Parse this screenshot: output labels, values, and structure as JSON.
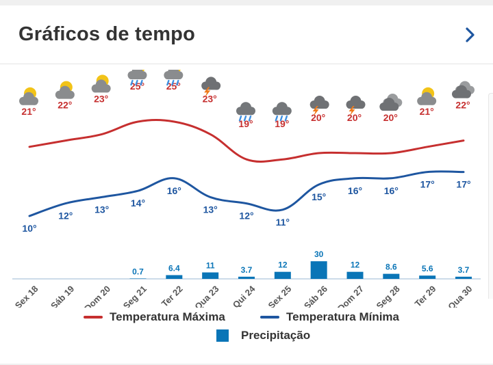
{
  "header": {
    "title": "Gráficos de tempo"
  },
  "colors": {
    "max": "#c62f2f",
    "min": "#1e56a0",
    "precip": "#0a75b7",
    "axis": "#555555"
  },
  "chart_data": {
    "type": "line",
    "categories": [
      "Sex 18",
      "Sáb 19",
      "Dom 20",
      "Seg 21",
      "Ter 22",
      "Qua 23",
      "Qui 24",
      "Sex 25",
      "Sáb 26",
      "Dom 27",
      "Seg 28",
      "Ter 29",
      "Qua 30"
    ],
    "icons": [
      "partly-cloudy-icon",
      "partly-cloudy-icon",
      "partly-cloudy-icon",
      "sun-cloud-rain-icon",
      "sun-cloud-rain-icon",
      "thunderstorm-icon",
      "cloud-rain-icon",
      "cloud-rain-icon",
      "thunderstorm-icon",
      "thunderstorm-icon",
      "cloudy-icon",
      "partly-cloudy-icon",
      "cloudy-icon"
    ],
    "series": [
      {
        "name": "Temperatura Máxima",
        "values": [
          21,
          22,
          23,
          25,
          25,
          23,
          19,
          19,
          20,
          20,
          20,
          21,
          22
        ],
        "labels": [
          "21°",
          "22°",
          "23°",
          "25°",
          "25°",
          "23°",
          "19°",
          "19°",
          "20°",
          "20°",
          "20°",
          "21°",
          "22°"
        ]
      },
      {
        "name": "Temperatura Mínima",
        "values": [
          10,
          12,
          13,
          14,
          16,
          13,
          12,
          11,
          15,
          16,
          16,
          17,
          17
        ],
        "labels": [
          "10°",
          "12°",
          "13°",
          "14°",
          "16°",
          "13°",
          "12°",
          "11°",
          "15°",
          "16°",
          "16°",
          "17°",
          "17°"
        ]
      },
      {
        "name": "Precipitação",
        "values": [
          0,
          0,
          0,
          0.7,
          6.4,
          11,
          3.7,
          12,
          30,
          12,
          8.6,
          5.6,
          3.7
        ],
        "labels": [
          "",
          "",
          "",
          "0.7",
          "6.4",
          "11",
          "3.7",
          "12",
          "30",
          "12",
          "8.6",
          "5.6",
          "3.7"
        ]
      }
    ]
  },
  "legend": {
    "max_label": "Temperatura Máxima",
    "min_label": "Temperatura Mínima",
    "precip_label": "Precipitação"
  }
}
